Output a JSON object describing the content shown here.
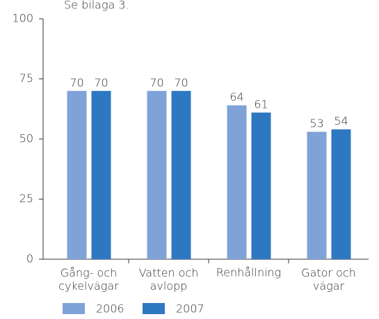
{
  "chart_data": {
    "type": "bar",
    "annotation": "Se bilaga 3.",
    "categories": [
      "Gång- och\ncykelvägar",
      "Vatten och\navlopp",
      "Renhållning",
      "Gator och\nvägar"
    ],
    "series": [
      {
        "name": "2006",
        "color": "#7fa3d8",
        "values": [
          70,
          70,
          64,
          53
        ]
      },
      {
        "name": "2007",
        "color": "#2e78c2",
        "values": [
          70,
          70,
          61,
          54
        ]
      }
    ],
    "ylim": [
      0,
      100
    ],
    "yticks": [
      0,
      25,
      50,
      75,
      100
    ],
    "legend": "bottom"
  }
}
